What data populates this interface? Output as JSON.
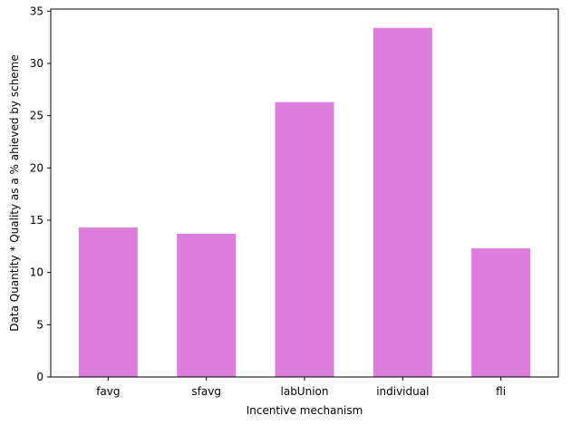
{
  "chart_data": {
    "type": "bar",
    "title": "",
    "xlabel": "Incentive mechanism",
    "ylabel": "Data Quantity * Quality as a % ahieved by scheme",
    "categories": [
      "favg",
      "sfavg",
      "labUnion",
      "individual",
      "fli"
    ],
    "values": [
      14.3,
      13.7,
      26.3,
      33.4,
      12.3
    ],
    "ylim": [
      0,
      35.2
    ],
    "yticks": [
      0,
      5,
      10,
      15,
      20,
      25,
      30,
      35
    ],
    "bar_color": "#dd7ddd",
    "grid": false,
    "legend": "none"
  }
}
